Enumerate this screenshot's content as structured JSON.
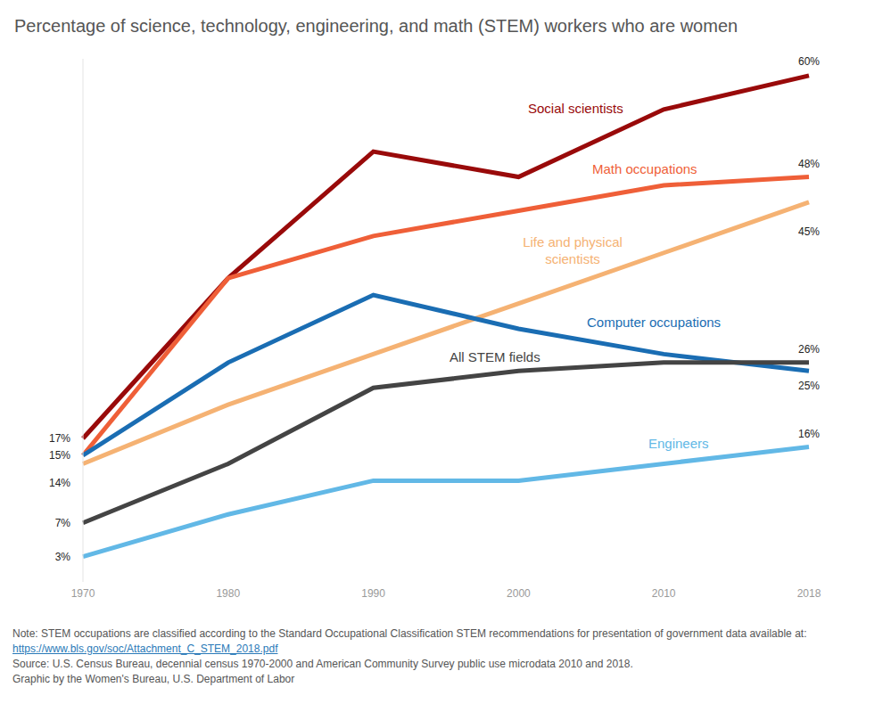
{
  "chart_data": {
    "type": "line",
    "title": "Percentage of science, technology, engineering, and math (STEM) workers who are women",
    "categories": [
      1970,
      1980,
      1990,
      2000,
      2010,
      2018
    ],
    "ylim": [
      0,
      62
    ],
    "tick_labels": "x",
    "grid": false,
    "data_labels": true,
    "series": [
      {
        "name": "Social scientists",
        "color": "#990a0a",
        "values": [
          17,
          36,
          51,
          48,
          56,
          60
        ],
        "value_labels": [
          "17%",
          null,
          null,
          null,
          null,
          "60%"
        ]
      },
      {
        "name": "Math occupations",
        "color": "#ef5f38",
        "values": [
          15,
          36,
          41,
          44,
          47,
          48
        ],
        "value_labels": [
          "15%",
          null,
          null,
          null,
          null,
          "48%"
        ]
      },
      {
        "name": "Life and physical scientists",
        "color": "#f5b273",
        "values": [
          14,
          21,
          27,
          33,
          39,
          45
        ],
        "value_labels": [
          "14%",
          null,
          null,
          null,
          null,
          "45%"
        ]
      },
      {
        "name": "Computer occupations",
        "color": "#1a6db3",
        "values": [
          15,
          26,
          34,
          30,
          27,
          25
        ],
        "value_labels": [
          null,
          null,
          null,
          null,
          null,
          "25%"
        ]
      },
      {
        "name": "All STEM fields",
        "color": "#444444",
        "values": [
          7,
          14,
          23,
          25,
          26,
          26
        ],
        "value_labels": [
          "7%",
          null,
          null,
          null,
          null,
          "26%"
        ]
      },
      {
        "name": "Engineers",
        "color": "#62b8e6",
        "values": [
          3,
          8,
          12,
          12,
          14,
          16
        ],
        "value_labels": [
          "3%",
          null,
          null,
          null,
          null,
          "16%"
        ]
      }
    ],
    "note": "Note: STEM occupations are classified according to the Standard Occupational Classification STEM recommendations for presentation of government data available at:",
    "note_link": "https://www.bls.gov/soc/Attachment_C_STEM_2018.pdf",
    "source": "Source: U.S. Census Bureau, decennial census 1970-2000 and American Community Survey public use microdata 2010 and 2018.",
    "credit": "Graphic by the Women's Bureau, U.S. Department of Labor"
  }
}
